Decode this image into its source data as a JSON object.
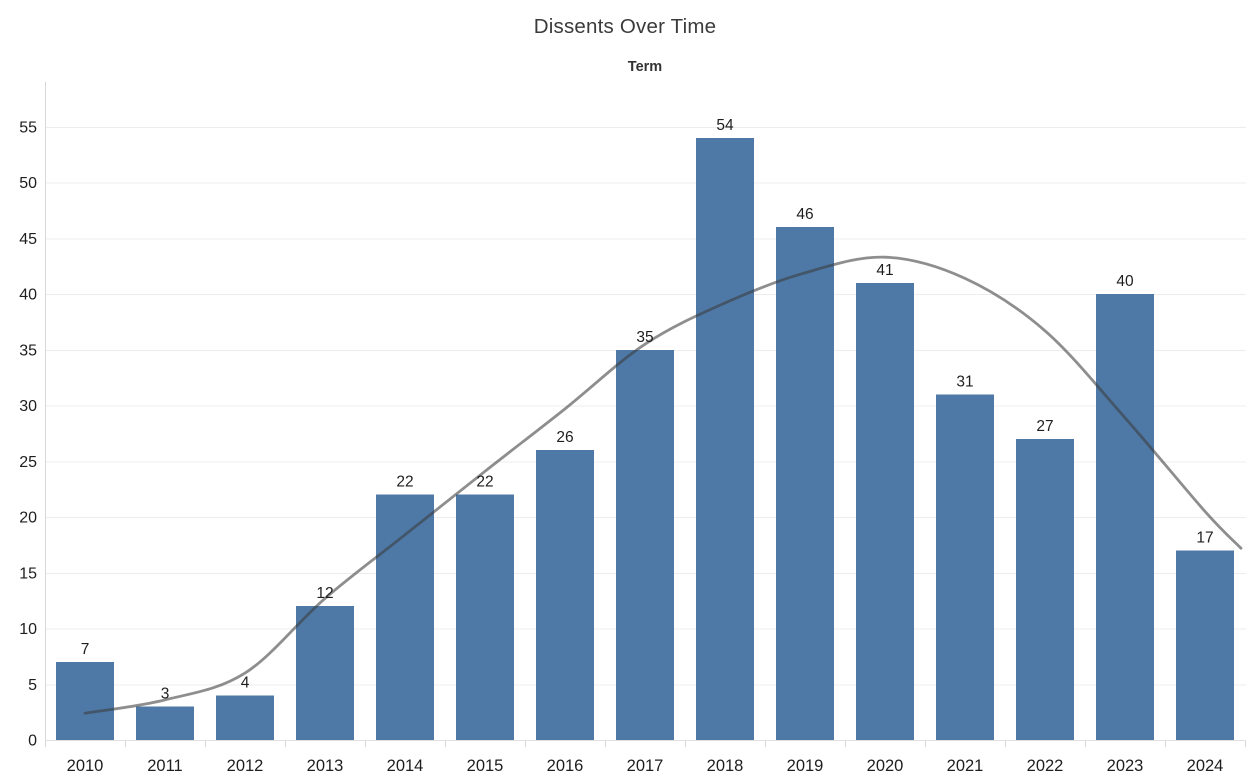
{
  "page": {
    "background": "#ffffff"
  },
  "chart_data": {
    "type": "bar",
    "title": "Dissents Over Time",
    "xlabel": "Term",
    "ylabel": "",
    "categories": [
      "2010",
      "2011",
      "2012",
      "2013",
      "2014",
      "2015",
      "2016",
      "2017",
      "2018",
      "2019",
      "2020",
      "2021",
      "2022",
      "2023",
      "2024"
    ],
    "values": [
      7,
      3,
      4,
      12,
      22,
      22,
      26,
      35,
      54,
      46,
      41,
      31,
      27,
      40,
      17
    ],
    "bar_labels_shown": true,
    "ylim": [
      0,
      58
    ],
    "yticks": [
      0,
      5,
      10,
      15,
      20,
      25,
      30,
      35,
      40,
      45,
      50,
      55
    ],
    "grid": "horizontal",
    "legend": "none",
    "trend_line": {
      "name": "polynomial-trend-curve",
      "points": [
        [
          2010,
          2.4
        ],
        [
          2011,
          3.6
        ],
        [
          2012,
          6.0
        ],
        [
          2013,
          12.7
        ],
        [
          2014,
          18.4
        ],
        [
          2015,
          24.1
        ],
        [
          2016,
          29.7
        ],
        [
          2017,
          35.5
        ],
        [
          2018,
          39.2
        ],
        [
          2019,
          41.9
        ],
        [
          2020,
          43.3
        ],
        [
          2021,
          41.4
        ],
        [
          2022,
          36.7
        ],
        [
          2023,
          28.9
        ],
        [
          2024,
          20.5
        ],
        [
          2024.45,
          17.2
        ]
      ]
    },
    "colors": {
      "bar": "#4e79a7",
      "trend": "rgba(60,60,60,0.58)",
      "grid": "#ececec",
      "baseline": "#e0e0e0",
      "axis": "#d8d8d8",
      "title": "#3b3b3b",
      "axis_title": "#333333",
      "tick_label": "#1e1e1e",
      "bar_label": "#1e1e1e"
    }
  }
}
